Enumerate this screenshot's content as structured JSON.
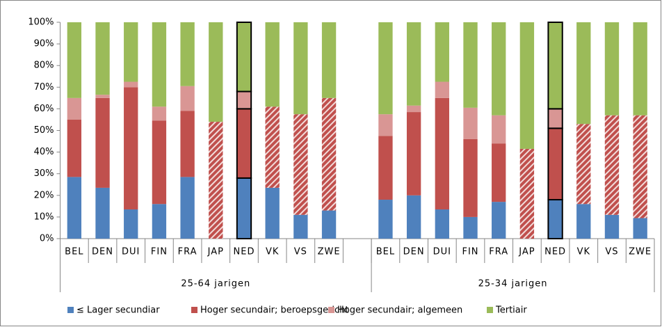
{
  "chart_data": {
    "type": "stacked_bar_100",
    "categories": [
      "BEL",
      "DEN",
      "DUI",
      "FIN",
      "FRA",
      "JAP",
      "NED",
      "VK",
      "VS",
      "ZWE",
      null,
      "BEL",
      "DEN",
      "DUI",
      "FIN",
      "FRA",
      "JAP",
      "NED",
      "VK",
      "VS",
      "ZWE"
    ],
    "category_groups": [
      {
        "label": "25-64 jarigen",
        "span": 11
      },
      {
        "label": "25-34 jarigen",
        "span": 10
      }
    ],
    "series": [
      {
        "name": "≤ Lager secundiar",
        "color": "#4f81bd",
        "values": [
          28.5,
          23.5,
          13.5,
          16,
          28.5,
          0,
          28,
          23.5,
          11,
          13,
          null,
          18,
          20,
          13.5,
          10,
          17,
          0,
          18,
          16,
          11,
          9.5
        ]
      },
      {
        "name": "Hoger secundair; beroepsgericht",
        "color": "#c0504d",
        "hatched": [
          "JAP",
          "VK",
          "VS",
          "ZWE"
        ],
        "values": [
          26.5,
          41.5,
          56.5,
          38.5,
          30.5,
          54,
          32,
          37.5,
          46.5,
          52,
          null,
          29.5,
          38.5,
          51.5,
          36,
          27,
          41.5,
          33,
          37,
          46,
          47.5
        ]
      },
      {
        "name": "Hoger secundair; algemeen",
        "color": "#d99694",
        "values": [
          10,
          1.5,
          2.5,
          6.5,
          11.5,
          0,
          8,
          0,
          0,
          0,
          null,
          10,
          3,
          7.5,
          14.5,
          13,
          0,
          9,
          0,
          0,
          0
        ]
      },
      {
        "name": "Tertiair",
        "color": "#9bbb59",
        "values": [
          35,
          33.5,
          27.5,
          39,
          29.5,
          46,
          32,
          39,
          42.5,
          35,
          null,
          42.5,
          38.5,
          27.5,
          39.5,
          43,
          58.5,
          40,
          47,
          43,
          43
        ]
      }
    ],
    "highlight": "NED",
    "ylim": [
      0,
      100
    ],
    "yticks": [
      {
        "value": 0,
        "label": "0%"
      },
      {
        "value": 10,
        "label": "10%"
      },
      {
        "value": 20,
        "label": "20%"
      },
      {
        "value": 30,
        "label": "30%"
      },
      {
        "value": 40,
        "label": "40%"
      },
      {
        "value": 50,
        "label": "50%"
      },
      {
        "value": 60,
        "label": "60%"
      },
      {
        "value": 70,
        "label": "70%"
      },
      {
        "value": 80,
        "label": "80%"
      },
      {
        "value": 90,
        "label": "90%"
      },
      {
        "value": 100,
        "label": "100%"
      }
    ],
    "legend": "bottom"
  }
}
